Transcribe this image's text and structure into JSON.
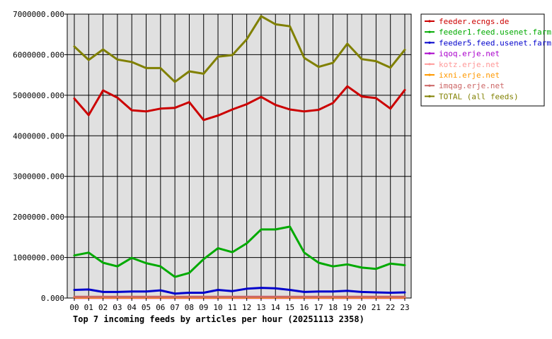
{
  "chart_data": {
    "type": "line",
    "title": "Top 7 incoming feeds by articles per hour (20251113 2358)",
    "xlabel": "",
    "ylabel": "",
    "categories": [
      "00",
      "01",
      "02",
      "03",
      "04",
      "05",
      "06",
      "07",
      "08",
      "09",
      "10",
      "11",
      "12",
      "13",
      "14",
      "15",
      "16",
      "17",
      "18",
      "19",
      "20",
      "21",
      "22",
      "23"
    ],
    "ylim": [
      0,
      7000000
    ],
    "yticks": [
      "0.000",
      "1000000.000",
      "2000000.000",
      "3000000.000",
      "4000000.000",
      "5000000.000",
      "6000000.000",
      "7000000.000"
    ],
    "grid": true,
    "legend_position": "right",
    "series": [
      {
        "name": "feeder.ecngs.de",
        "color": "#cc0000",
        "values": [
          4920000,
          4510000,
          5120000,
          4940000,
          4630000,
          4600000,
          4670000,
          4690000,
          4830000,
          4390000,
          4500000,
          4650000,
          4780000,
          4960000,
          4760000,
          4650000,
          4600000,
          4640000,
          4810000,
          5220000,
          4970000,
          4930000,
          4670000,
          5130000
        ]
      },
      {
        "name": "feeder1.feed.usenet.farm",
        "color": "#00aa00",
        "values": [
          1050000,
          1120000,
          870000,
          780000,
          990000,
          860000,
          780000,
          520000,
          620000,
          960000,
          1230000,
          1130000,
          1350000,
          1690000,
          1690000,
          1760000,
          1120000,
          870000,
          780000,
          830000,
          750000,
          720000,
          850000,
          810000
        ]
      },
      {
        "name": "feeder5.feed.usenet.farm",
        "color": "#0000cc",
        "values": [
          200000,
          210000,
          150000,
          150000,
          160000,
          160000,
          190000,
          110000,
          130000,
          130000,
          200000,
          170000,
          230000,
          250000,
          240000,
          200000,
          150000,
          160000,
          160000,
          180000,
          150000,
          140000,
          130000,
          140000
        ]
      },
      {
        "name": "iqoq.erje.net",
        "color": "#aa00cc",
        "values": [
          5000,
          5000,
          5000,
          5000,
          5000,
          5000,
          5000,
          5000,
          5000,
          5000,
          5000,
          5000,
          5000,
          5000,
          5000,
          5000,
          5000,
          5000,
          5000,
          5000,
          5000,
          5000,
          5000,
          5000
        ]
      },
      {
        "name": "kotz.erje.net",
        "color": "#ff9999",
        "values": [
          20000,
          20000,
          20000,
          20000,
          20000,
          20000,
          20000,
          20000,
          20000,
          20000,
          20000,
          20000,
          20000,
          20000,
          20000,
          20000,
          20000,
          20000,
          20000,
          20000,
          20000,
          20000,
          20000,
          20000
        ]
      },
      {
        "name": "ixni.erje.net",
        "color": "#ff9900",
        "values": [
          10000,
          10000,
          10000,
          10000,
          10000,
          10000,
          10000,
          10000,
          10000,
          10000,
          10000,
          10000,
          10000,
          10000,
          10000,
          10000,
          10000,
          10000,
          10000,
          10000,
          10000,
          10000,
          10000,
          10000
        ]
      },
      {
        "name": "imqag.erje.net",
        "color": "#cc6666",
        "values": [
          30000,
          30000,
          30000,
          30000,
          30000,
          30000,
          30000,
          30000,
          30000,
          30000,
          30000,
          30000,
          30000,
          30000,
          30000,
          30000,
          30000,
          30000,
          30000,
          30000,
          30000,
          30000,
          30000,
          30000
        ]
      },
      {
        "name": "TOTAL (all feeds)",
        "color": "#808000",
        "values": [
          6200000,
          5870000,
          6130000,
          5880000,
          5820000,
          5670000,
          5670000,
          5330000,
          5590000,
          5530000,
          5950000,
          5990000,
          6380000,
          6950000,
          6750000,
          6700000,
          5920000,
          5700000,
          5800000,
          6270000,
          5890000,
          5840000,
          5680000,
          6120000
        ]
      }
    ]
  }
}
